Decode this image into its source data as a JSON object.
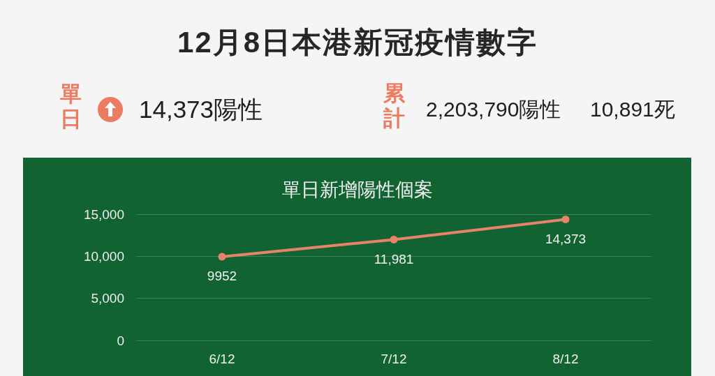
{
  "chart_data": [
    {
      "type": "other",
      "title": "12月8日本港新冠疫情數字",
      "annotations": [
        "單日",
        "14,373陽性",
        "累計",
        "2,203,790陽性",
        "10,891死"
      ]
    },
    {
      "type": "line",
      "title": "單日新增陽性個案",
      "categories": [
        "6/12",
        "7/12",
        "8/12"
      ],
      "values": [
        9952,
        11981,
        14373
      ],
      "color": "#e8836a",
      "value_labels": [
        "9952",
        "11,981",
        "14,373"
      ],
      "ylim": [
        0,
        15000
      ],
      "yticks": [
        0,
        {
          "value": 5000,
          "label": "5,000"
        },
        {
          "value": 10000,
          "label": "10,000"
        },
        {
          "value": 15000,
          "label": "15,000"
        }
      ],
      "grid": "y",
      "marker": "circle"
    }
  ]
}
